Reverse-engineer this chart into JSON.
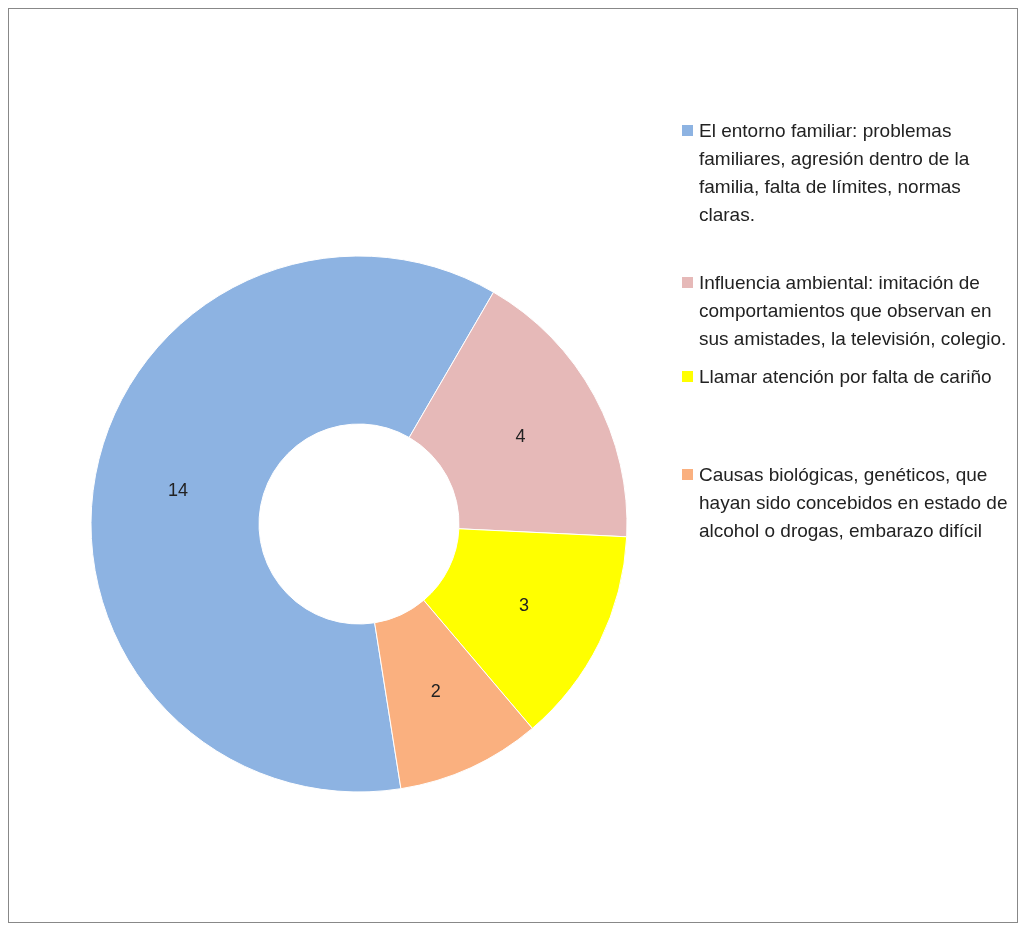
{
  "chart_data": {
    "type": "donut",
    "categories": [
      "El entorno familiar: problemas familiares, agresión dentro de la familia, falta de límites, normas claras.",
      "Influencia ambiental: imitación de comportamientos que observan en sus amistades, la televisión, colegio.",
      "Llamar atención por falta de cariño",
      "Causas biológicas, genéticos, que hayan sido concebidos en estado de alcohol o drogas, embarazo difícil"
    ],
    "values": [
      14,
      4,
      3,
      2
    ],
    "colors": [
      "#8db3e2",
      "#e6b9b8",
      "#ffff00",
      "#fab07f"
    ],
    "data_labels": true,
    "legend": "right"
  }
}
